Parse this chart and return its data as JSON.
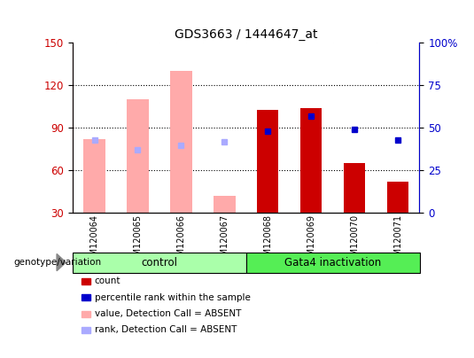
{
  "title": "GDS3663 / 1444647_at",
  "samples": [
    "GSM120064",
    "GSM120065",
    "GSM120066",
    "GSM120067",
    "GSM120068",
    "GSM120069",
    "GSM120070",
    "GSM120071"
  ],
  "absent_value": [
    82,
    110,
    130,
    42,
    null,
    null,
    null,
    null
  ],
  "absent_rank_pct": [
    43,
    null,
    40,
    42,
    null,
    null,
    null,
    null
  ],
  "present_value": [
    null,
    null,
    null,
    null,
    103,
    104,
    65,
    52
  ],
  "present_rank_pct": [
    null,
    null,
    null,
    null,
    48,
    57,
    49,
    43
  ],
  "absent_rank_only_pct": [
    null,
    37,
    null,
    null,
    null,
    null,
    null,
    null
  ],
  "ylim_left": [
    30,
    150
  ],
  "ylim_right": [
    0,
    100
  ],
  "yticks_left": [
    30,
    60,
    90,
    120,
    150
  ],
  "yticks_right": [
    0,
    25,
    50,
    75,
    100
  ],
  "yticklabels_right": [
    "0",
    "25",
    "50",
    "75",
    "100%"
  ],
  "color_red": "#cc0000",
  "color_pink": "#ffaaaa",
  "color_blue_dark": "#0000cc",
  "color_blue_light": "#aaaaff",
  "color_group1_bg": "#aaffaa",
  "color_group2_bg": "#55ee55",
  "group_labels": [
    "control",
    "Gata4 inactivation"
  ],
  "legend_items": [
    {
      "label": "count",
      "color": "#cc0000"
    },
    {
      "label": "percentile rank within the sample",
      "color": "#0000cc"
    },
    {
      "label": "value, Detection Call = ABSENT",
      "color": "#ffaaaa"
    },
    {
      "label": "rank, Detection Call = ABSENT",
      "color": "#aaaaff"
    }
  ],
  "genotype_label": "genotype/variation"
}
